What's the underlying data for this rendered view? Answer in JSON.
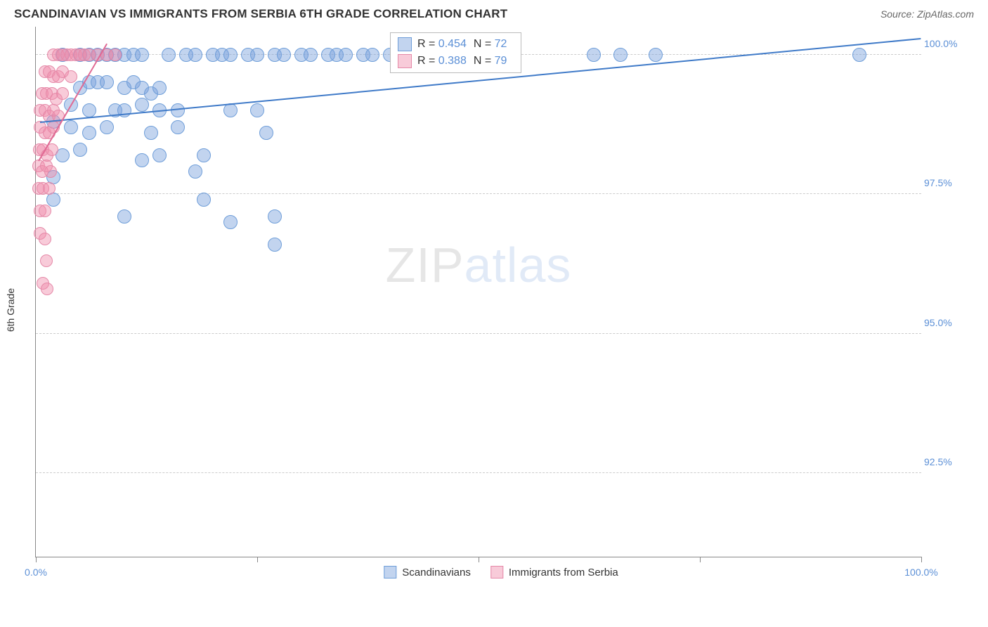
{
  "header": {
    "title": "SCANDINAVIAN VS IMMIGRANTS FROM SERBIA 6TH GRADE CORRELATION CHART",
    "source": "Source: ZipAtlas.com"
  },
  "chart": {
    "type": "scatter",
    "y_axis_label": "6th Grade",
    "background_color": "#ffffff",
    "grid_color": "#cccccc",
    "axis_color": "#888888",
    "xlim": [
      0,
      100
    ],
    "ylim": [
      91.0,
      100.5
    ],
    "x_ticks": [
      0,
      25,
      50,
      75,
      100
    ],
    "x_tick_labels": {
      "0": "0.0%",
      "100": "100.0%"
    },
    "y_ticks": [
      92.5,
      95.0,
      97.5,
      100.0
    ],
    "y_tick_labels": [
      "92.5%",
      "95.0%",
      "97.5%",
      "100.0%"
    ],
    "watermark": {
      "left": "ZIP",
      "right": "atlas"
    },
    "series": [
      {
        "name": "Scandinavians",
        "fill_color": "rgba(120,160,220,0.45)",
        "stroke_color": "#6f9ed9",
        "marker_radius": 10,
        "trend": {
          "x1": 0.5,
          "y1": 98.8,
          "x2": 100,
          "y2": 100.3,
          "color": "#3f7ac8",
          "width": 2
        },
        "stats": {
          "R": "0.454",
          "N": "72"
        },
        "points": [
          [
            3,
            100
          ],
          [
            5,
            100
          ],
          [
            6,
            100
          ],
          [
            7,
            100
          ],
          [
            8,
            100
          ],
          [
            9,
            100
          ],
          [
            10,
            100
          ],
          [
            11,
            100
          ],
          [
            12,
            100
          ],
          [
            15,
            100
          ],
          [
            17,
            100
          ],
          [
            18,
            100
          ],
          [
            20,
            100
          ],
          [
            21,
            100
          ],
          [
            22,
            100
          ],
          [
            24,
            100
          ],
          [
            25,
            100
          ],
          [
            27,
            100
          ],
          [
            28,
            100
          ],
          [
            30,
            100
          ],
          [
            31,
            100
          ],
          [
            33,
            100
          ],
          [
            34,
            100
          ],
          [
            35,
            100
          ],
          [
            37,
            100
          ],
          [
            38,
            100
          ],
          [
            40,
            100
          ],
          [
            42,
            100
          ],
          [
            44,
            100
          ],
          [
            46,
            100
          ],
          [
            48,
            100
          ],
          [
            50,
            100
          ],
          [
            63,
            100
          ],
          [
            66,
            100
          ],
          [
            70,
            100
          ],
          [
            93,
            100
          ],
          [
            5,
            99.4
          ],
          [
            6,
            99.5
          ],
          [
            7,
            99.5
          ],
          [
            8,
            99.5
          ],
          [
            10,
            99.4
          ],
          [
            11,
            99.5
          ],
          [
            12,
            99.4
          ],
          [
            13,
            99.3
          ],
          [
            14,
            99.4
          ],
          [
            4,
            99.1
          ],
          [
            6,
            99.0
          ],
          [
            9,
            99.0
          ],
          [
            10,
            99.0
          ],
          [
            12,
            99.1
          ],
          [
            14,
            99.0
          ],
          [
            16,
            99.0
          ],
          [
            22,
            99.0
          ],
          [
            25,
            99.0
          ],
          [
            2,
            98.8
          ],
          [
            4,
            98.7
          ],
          [
            6,
            98.6
          ],
          [
            8,
            98.7
          ],
          [
            13,
            98.6
          ],
          [
            16,
            98.7
          ],
          [
            26,
            98.6
          ],
          [
            3,
            98.2
          ],
          [
            5,
            98.3
          ],
          [
            12,
            98.1
          ],
          [
            14,
            98.2
          ],
          [
            19,
            98.2
          ],
          [
            2,
            97.8
          ],
          [
            18,
            97.9
          ],
          [
            2,
            97.4
          ],
          [
            19,
            97.4
          ],
          [
            10,
            97.1
          ],
          [
            22,
            97.0
          ],
          [
            27,
            97.1
          ],
          [
            27,
            96.6
          ]
        ]
      },
      {
        "name": "Immigrants from Serbia",
        "fill_color": "rgba(240,140,170,0.45)",
        "stroke_color": "#e589a8",
        "marker_radius": 9,
        "trend": {
          "x1": 0.3,
          "y1": 98.1,
          "x2": 8,
          "y2": 100.2,
          "color": "#e06a94",
          "width": 2
        },
        "stats": {
          "R": "0.388",
          "N": "79"
        },
        "points": [
          [
            2,
            100
          ],
          [
            2.5,
            100
          ],
          [
            3,
            100
          ],
          [
            3.5,
            100
          ],
          [
            4,
            100
          ],
          [
            4.5,
            100
          ],
          [
            5,
            100
          ],
          [
            5.5,
            100
          ],
          [
            6,
            100
          ],
          [
            7,
            100
          ],
          [
            8,
            100
          ],
          [
            9,
            100
          ],
          [
            1,
            99.7
          ],
          [
            1.5,
            99.7
          ],
          [
            2,
            99.6
          ],
          [
            2.5,
            99.6
          ],
          [
            3,
            99.7
          ],
          [
            4,
            99.6
          ],
          [
            0.7,
            99.3
          ],
          [
            1.2,
            99.3
          ],
          [
            1.8,
            99.3
          ],
          [
            2.3,
            99.2
          ],
          [
            3,
            99.3
          ],
          [
            0.5,
            99.0
          ],
          [
            1,
            99.0
          ],
          [
            1.5,
            98.9
          ],
          [
            2,
            99.0
          ],
          [
            2.5,
            98.9
          ],
          [
            0.5,
            98.7
          ],
          [
            1,
            98.6
          ],
          [
            1.5,
            98.6
          ],
          [
            2,
            98.7
          ],
          [
            0.4,
            98.3
          ],
          [
            0.8,
            98.3
          ],
          [
            1.3,
            98.2
          ],
          [
            1.8,
            98.3
          ],
          [
            0.3,
            98.0
          ],
          [
            0.7,
            97.9
          ],
          [
            1.2,
            98.0
          ],
          [
            1.7,
            97.9
          ],
          [
            0.3,
            97.6
          ],
          [
            0.8,
            97.6
          ],
          [
            1.5,
            97.6
          ],
          [
            0.5,
            97.2
          ],
          [
            1,
            97.2
          ],
          [
            0.5,
            96.8
          ],
          [
            1,
            96.7
          ],
          [
            1.2,
            96.3
          ],
          [
            0.8,
            95.9
          ],
          [
            1.3,
            95.8
          ]
        ]
      }
    ],
    "bottom_legend": [
      {
        "label": "Scandinavians",
        "fill": "rgba(120,160,220,0.45)",
        "stroke": "#6f9ed9"
      },
      {
        "label": "Immigrants from Serbia",
        "fill": "rgba(240,140,170,0.45)",
        "stroke": "#e589a8"
      }
    ],
    "stat_box": {
      "left_pct": 40,
      "top_y": 100.4
    }
  }
}
